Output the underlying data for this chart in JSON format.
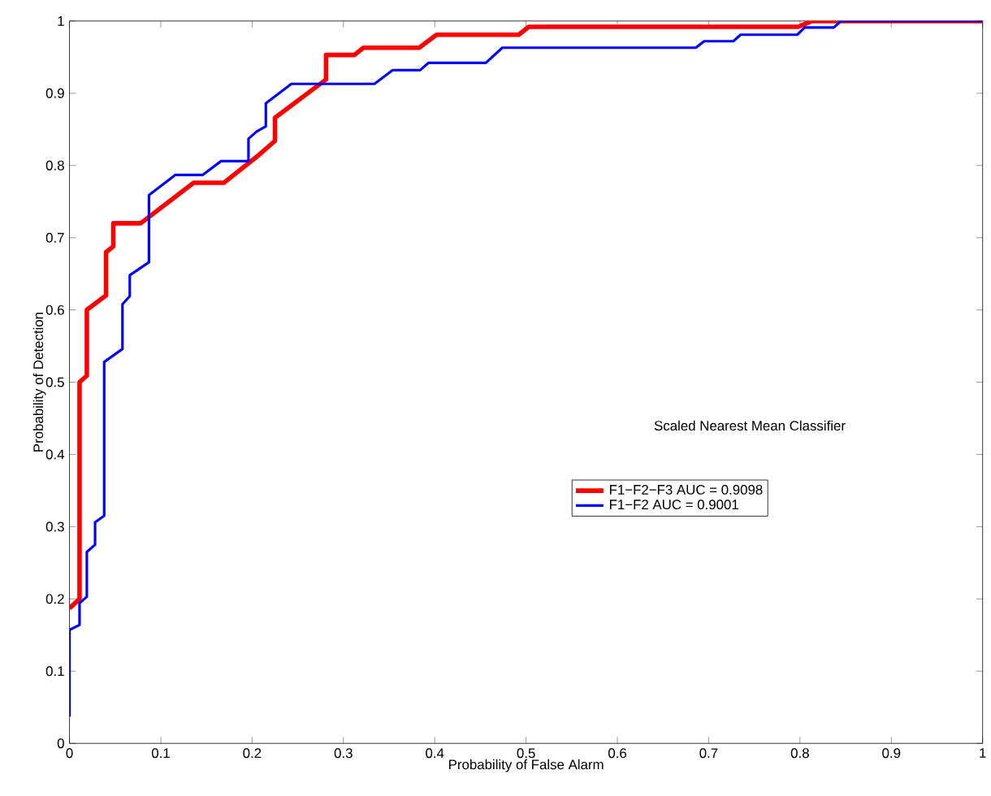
{
  "chart_data": {
    "type": "line",
    "xlabel": "Probability of False Alarm",
    "ylabel": "Probability of Detection",
    "annotations": [
      "Scaled  Nearest Mean Classifier"
    ],
    "xlim": [
      0,
      1
    ],
    "ylim": [
      0,
      1
    ],
    "xticks": [
      0,
      0.1,
      0.2,
      0.3,
      0.4,
      0.5,
      0.6,
      0.7,
      0.8,
      0.9,
      1
    ],
    "yticks": [
      0,
      0.1,
      0.2,
      0.3,
      0.4,
      0.5,
      0.6,
      0.7,
      0.8,
      0.9,
      1
    ],
    "grid": false,
    "legend": "right",
    "line_style": "solid",
    "marker": "none",
    "series": [
      {
        "name": "F1−F2−F3  AUC = 0.9098",
        "color": "#ff0000",
        "x": [
          0,
          0.011,
          0.011,
          0.019,
          0.019,
          0.04,
          0.04,
          0.048,
          0.048,
          0.078,
          0.136,
          0.169,
          0.205,
          0.225,
          0.225,
          0.281,
          0.281,
          0.312,
          0.322,
          0.383,
          0.402,
          0.492,
          0.503,
          0.798,
          0.813,
          1
        ],
        "values": [
          0.187,
          0.2,
          0.5,
          0.509,
          0.6,
          0.62,
          0.68,
          0.688,
          0.72,
          0.72,
          0.776,
          0.776,
          0.812,
          0.834,
          0.866,
          0.919,
          0.953,
          0.953,
          0.963,
          0.963,
          0.981,
          0.981,
          0.992,
          0.992,
          1,
          1
        ]
      },
      {
        "name": "F1−F2      AUC = 0.9001",
        "color": "#0000ff",
        "x": [
          0,
          0,
          0.011,
          0.011,
          0.019,
          0.019,
          0.028,
          0.028,
          0.038,
          0.038,
          0.058,
          0.058,
          0.066,
          0.066,
          0.087,
          0.087,
          0.116,
          0.146,
          0.166,
          0.196,
          0.196,
          0.205,
          0.215,
          0.215,
          0.243,
          0.334,
          0.354,
          0.384,
          0.393,
          0.456,
          0.474,
          0.686,
          0.695,
          0.727,
          0.735,
          0.797,
          0.805,
          0.837,
          0.845,
          1
        ],
        "values": [
          0.037,
          0.157,
          0.164,
          0.194,
          0.203,
          0.265,
          0.275,
          0.306,
          0.315,
          0.528,
          0.546,
          0.608,
          0.619,
          0.648,
          0.666,
          0.759,
          0.787,
          0.787,
          0.806,
          0.806,
          0.837,
          0.847,
          0.854,
          0.886,
          0.913,
          0.913,
          0.932,
          0.932,
          0.942,
          0.942,
          0.963,
          0.963,
          0.972,
          0.972,
          0.981,
          0.981,
          0.991,
          0.991,
          1,
          1
        ]
      }
    ]
  }
}
